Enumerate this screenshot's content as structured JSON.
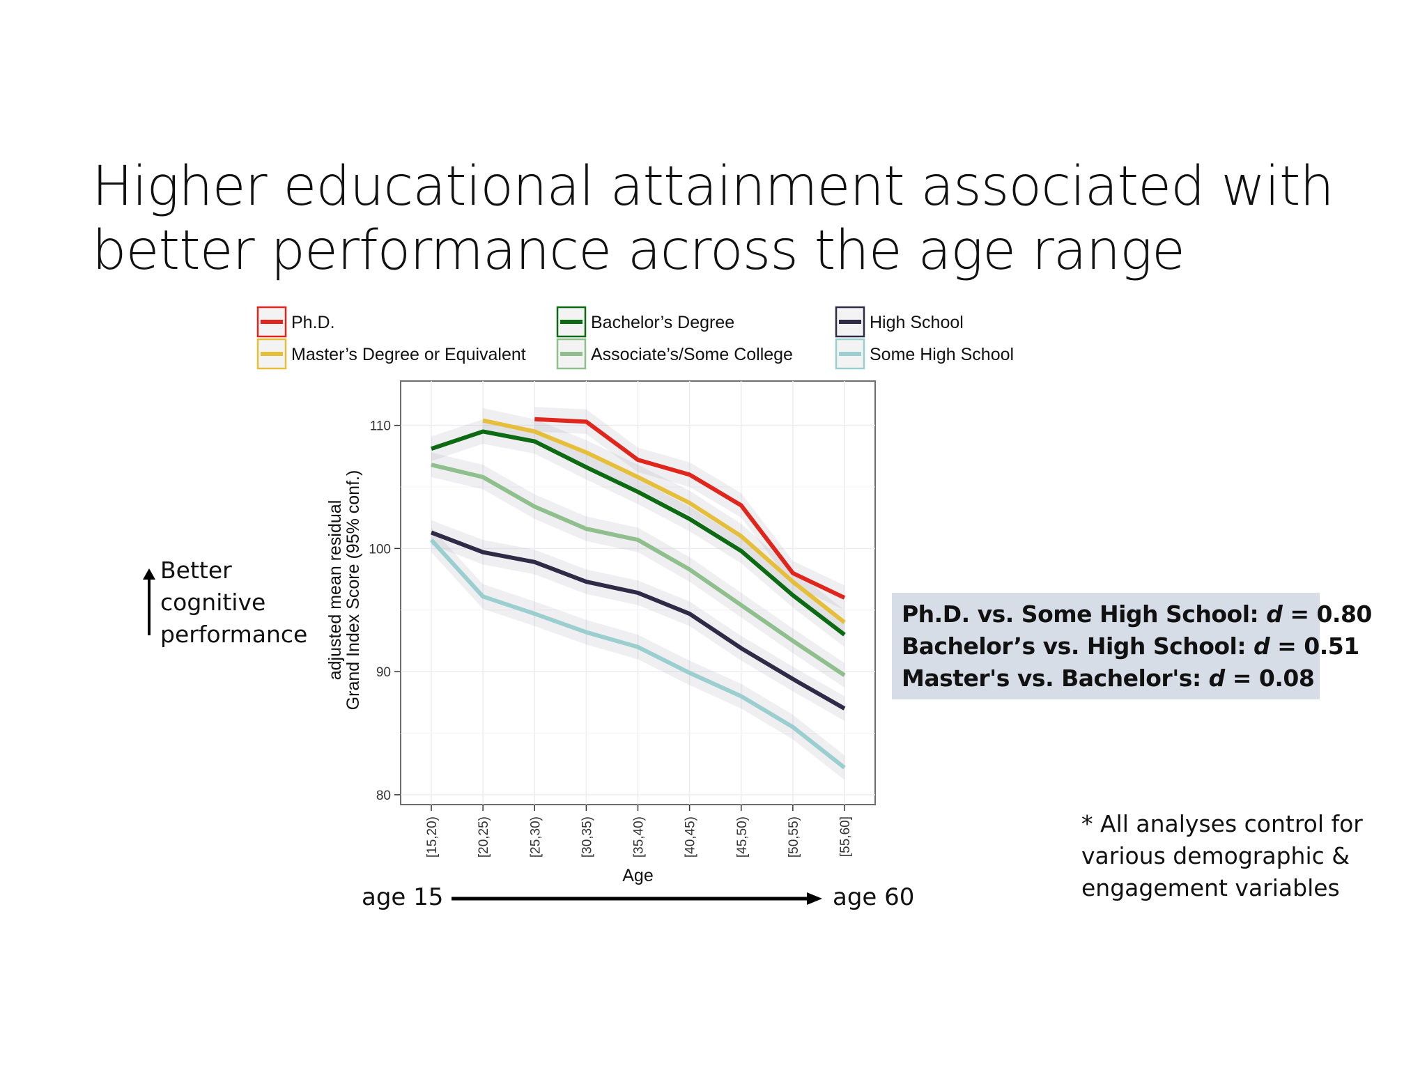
{
  "slide": {
    "title_line1": "Higher educational attainment associated with",
    "title_line2": "better performance across the age range",
    "side_note": [
      "Better",
      "cognitive",
      "performance"
    ],
    "stats": [
      {
        "label": "Ph.D. vs. Some High School: ",
        "d": "d",
        "value": " = 0.80"
      },
      {
        "label": "Bachelor’s vs. High School: ",
        "d": "d",
        "value": " = 0.51"
      },
      {
        "label": "Master's vs. Bachelor's: ",
        "d": "d",
        "value": " = 0.08"
      }
    ],
    "footnote": [
      "* All analyses control for",
      "various demographic &",
      "engagement variables"
    ],
    "age_start": "age 15",
    "age_end": "age 60"
  },
  "chart_data": {
    "type": "line",
    "xlabel": "Age",
    "ylabel_line1": "adjusted mean residual",
    "ylabel_line2": "Grand Index Score (95% conf.)",
    "categories": [
      "[15,20)",
      "[20,25)",
      "[25,30)",
      "[30,35)",
      "[35,40)",
      "[40,45)",
      "[45,50)",
      "[50,55)",
      "[55,60]"
    ],
    "ylim": [
      79.2,
      113.6
    ],
    "yticks": [
      80,
      90,
      100,
      110
    ],
    "grid": true,
    "legend_position": "top",
    "series": [
      {
        "name": "Ph.D.",
        "color": "#e0261c",
        "values": [
          null,
          null,
          110.5,
          110.3,
          107.2,
          106.0,
          103.5,
          98.0,
          96.0
        ]
      },
      {
        "name": "Master’s Degree or Equivalent",
        "color": "#e6bf3a",
        "values": [
          null,
          110.4,
          109.5,
          107.8,
          105.8,
          103.7,
          101.0,
          97.3,
          94.0
        ]
      },
      {
        "name": "Bachelor’s Degree",
        "color": "#0b6a12",
        "values": [
          108.1,
          109.5,
          108.7,
          106.6,
          104.6,
          102.4,
          99.8,
          96.2,
          93.0
        ]
      },
      {
        "name": "Associate’s/Some College",
        "color": "#8fbf8d",
        "values": [
          106.8,
          105.8,
          103.4,
          101.6,
          100.7,
          98.3,
          95.4,
          92.5,
          89.7
        ]
      },
      {
        "name": "High School",
        "color": "#2f2b47",
        "values": [
          101.3,
          99.7,
          98.9,
          97.3,
          96.4,
          94.7,
          91.9,
          89.4,
          87.0
        ]
      },
      {
        "name": "Some High School",
        "color": "#9bcfcf",
        "values": [
          100.7,
          96.1,
          94.7,
          93.2,
          92.0,
          89.9,
          88.0,
          85.5,
          82.2
        ]
      }
    ]
  }
}
